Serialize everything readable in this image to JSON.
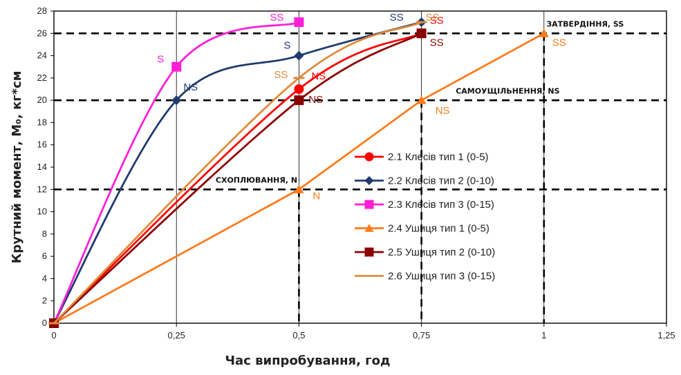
{
  "chart_data": {
    "type": "line",
    "xlabel": "Час випробування, год",
    "ylabel": "Крутний момент, M₀, кг*см",
    "xlim": [
      0,
      1.25
    ],
    "ylim": [
      0,
      28
    ],
    "x_ticks": [
      "0",
      "0,25",
      "0,5",
      "0,75",
      "1",
      "1,25"
    ],
    "y_ticks": [
      "0",
      "2",
      "4",
      "6",
      "8",
      "10",
      "12",
      "14",
      "16",
      "18",
      "20",
      "22",
      "24",
      "26",
      "28"
    ],
    "series": [
      {
        "name": "2.1 Клесів тип 1 (0-5)",
        "color": "#ff0000",
        "marker": "circle",
        "x": [
          0,
          0.5,
          0.75
        ],
        "y": [
          0,
          21,
          26
        ],
        "labels": [
          {
            "i": 1,
            "text": "NS",
            "dx": 18,
            "dy": -14
          },
          {
            "i": 2,
            "text": "SS",
            "dx": 12,
            "dy": -14
          }
        ]
      },
      {
        "name": "2.2 Клесів тип 2 (0-10)",
        "color": "#1f3a6e",
        "marker": "diamond",
        "x": [
          0,
          0.25,
          0.5,
          0.75
        ],
        "y": [
          0,
          20,
          24,
          27
        ],
        "labels": [
          {
            "i": 1,
            "text": "NS",
            "dx": 10,
            "dy": -14
          },
          {
            "i": 2,
            "text": "S",
            "dx": -22,
            "dy": -10
          },
          {
            "i": 3,
            "text": "SS",
            "dx": -46,
            "dy": -2
          }
        ]
      },
      {
        "name": "2.3 Клесів тип 3 (0-15)",
        "color": "#ff1fd7",
        "marker": "square",
        "x": [
          0,
          0.25,
          0.5
        ],
        "y": [
          0,
          23,
          27
        ],
        "labels": [
          {
            "i": 1,
            "text": "S",
            "dx": -28,
            "dy": -6
          },
          {
            "i": 2,
            "text": "SS",
            "dx": -42,
            "dy": -2
          }
        ]
      },
      {
        "name": "2.4 Ушиця тип 1 (0-5)",
        "color": "#ff7a1a",
        "marker": "triangle",
        "x": [
          0,
          0.5,
          0.75,
          1
        ],
        "y": [
          0,
          12,
          20,
          26
        ],
        "labels": [
          {
            "i": 1,
            "text": "N",
            "dx": 20,
            "dy": 14
          },
          {
            "i": 2,
            "text": "NS",
            "dx": 20,
            "dy": 20
          },
          {
            "i": 3,
            "text": "SS",
            "dx": 12,
            "dy": 18
          }
        ]
      },
      {
        "name": "2.5 Ушиця тип 2 (0-10)",
        "color": "#8b0000",
        "marker": "square",
        "x": [
          0,
          0.5,
          0.75
        ],
        "y": [
          0,
          20,
          26
        ],
        "labels": [
          {
            "i": 1,
            "text": "NS",
            "dx": 14,
            "dy": 4
          },
          {
            "i": 2,
            "text": "SS",
            "dx": 12,
            "dy": 18
          }
        ]
      },
      {
        "name": "2.6 Ушиця тип 3 (0-15)",
        "color": "#e08a3a",
        "marker": "none",
        "x": [
          0,
          0.5,
          0.75
        ],
        "y": [
          0,
          22,
          27
        ],
        "labels": [
          {
            "i": 1,
            "text": "SS",
            "dx": -36,
            "dy": 0
          },
          {
            "i": 2,
            "text": "SS",
            "dx": 6,
            "dy": -2
          }
        ]
      }
    ],
    "reference_lines": {
      "horizontal": [
        12,
        20,
        26
      ],
      "vertical_from_axis": [
        {
          "x": 0.5,
          "y": 12
        },
        {
          "x": 0.75,
          "y": 20
        },
        {
          "x": 1,
          "y": 26
        }
      ]
    },
    "annotations": [
      {
        "text": "СХОПЛЮВАННЯ, N",
        "x": 0.33,
        "y": 12.6
      },
      {
        "text": "САМОУЩІЛЬНЕННЯ, NS",
        "x": 0.82,
        "y": 20.6
      },
      {
        "text": "ЗАТВЕРДІННЯ, SS",
        "x": 1.005,
        "y": 26.6
      }
    ],
    "grid": {
      "vertical": true,
      "horizontal": false
    },
    "legend": {
      "position": "center-right"
    }
  }
}
